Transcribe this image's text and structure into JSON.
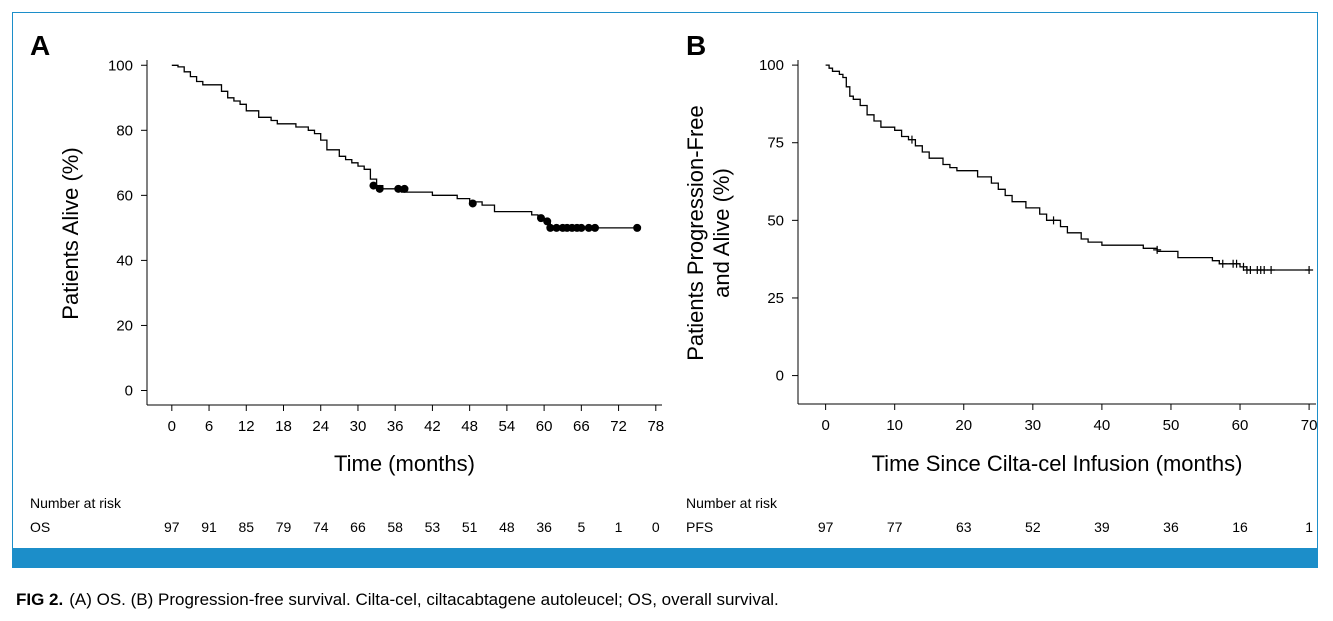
{
  "figure_caption": {
    "label": "FIG 2.",
    "text": "(A) OS. (B) Progression-free survival. Cilta-cel, ciltacabtagene autoleucel; OS, overall survival."
  },
  "chart_data": [
    {
      "panel": "A",
      "type": "line",
      "step": true,
      "xlabel": "Time (months)",
      "ylabel": "Patients Alive (%)",
      "xlim": [
        -4,
        79
      ],
      "ylim": [
        -2,
        101
      ],
      "x_ticks": [
        0,
        6,
        12,
        18,
        24,
        30,
        36,
        42,
        48,
        54,
        60,
        66,
        72,
        78
      ],
      "y_ticks": [
        0,
        20,
        40,
        60,
        80,
        100
      ],
      "censor_marker": "dot",
      "series": [
        {
          "name": "OS",
          "points": [
            [
              0,
              100
            ],
            [
              1,
              100
            ],
            [
              1,
              99.5
            ],
            [
              2,
              99.5
            ],
            [
              2,
              98
            ],
            [
              3,
              98
            ],
            [
              3,
              96.5
            ],
            [
              4,
              96.5
            ],
            [
              4,
              95
            ],
            [
              5,
              95
            ],
            [
              5,
              94
            ],
            [
              8,
              94
            ],
            [
              8,
              92
            ],
            [
              9,
              92
            ],
            [
              9,
              90
            ],
            [
              10,
              90
            ],
            [
              10,
              89
            ],
            [
              11,
              89
            ],
            [
              11,
              88
            ],
            [
              12,
              88
            ],
            [
              12,
              86
            ],
            [
              14,
              86
            ],
            [
              14,
              84
            ],
            [
              16,
              84
            ],
            [
              16,
              83
            ],
            [
              17,
              83
            ],
            [
              17,
              82
            ],
            [
              20,
              82
            ],
            [
              20,
              81
            ],
            [
              22,
              81
            ],
            [
              22,
              80
            ],
            [
              23,
              80
            ],
            [
              23,
              79
            ],
            [
              24,
              79
            ],
            [
              24,
              77
            ],
            [
              25,
              77
            ],
            [
              25,
              74
            ],
            [
              27,
              74
            ],
            [
              27,
              72
            ],
            [
              28,
              72
            ],
            [
              28,
              71
            ],
            [
              29,
              71
            ],
            [
              29,
              70
            ],
            [
              30,
              70
            ],
            [
              30,
              69
            ],
            [
              31,
              69
            ],
            [
              31,
              68
            ],
            [
              32,
              68
            ],
            [
              32,
              65
            ],
            [
              33,
              65
            ],
            [
              33,
              63
            ],
            [
              34,
              63
            ],
            [
              34,
              62
            ],
            [
              37,
              62
            ],
            [
              37,
              61
            ],
            [
              42,
              61
            ],
            [
              42,
              60
            ],
            [
              46,
              60
            ],
            [
              46,
              59
            ],
            [
              48,
              59
            ],
            [
              48,
              58
            ],
            [
              50,
              58
            ],
            [
              50,
              57
            ],
            [
              52,
              57
            ],
            [
              52,
              55
            ],
            [
              58,
              55
            ],
            [
              58,
              54
            ],
            [
              59,
              54
            ],
            [
              59,
              53
            ],
            [
              60,
              53
            ],
            [
              60,
              52
            ],
            [
              61,
              52
            ],
            [
              61,
              50
            ],
            [
              75,
              50
            ]
          ]
        }
      ],
      "censored": [
        [
          32.5,
          63
        ],
        [
          33.5,
          62
        ],
        [
          36.5,
          62
        ],
        [
          37.5,
          62
        ],
        [
          48.5,
          57.5
        ],
        [
          59.5,
          53
        ],
        [
          60.5,
          52
        ],
        [
          61,
          50
        ],
        [
          62,
          50
        ],
        [
          63,
          50
        ],
        [
          63.7,
          50
        ],
        [
          64.5,
          50
        ],
        [
          65.3,
          50
        ],
        [
          66,
          50
        ],
        [
          67.2,
          50
        ],
        [
          68.2,
          50
        ],
        [
          75,
          50
        ]
      ],
      "risk_table": {
        "heading": "Number at risk",
        "row_label": "OS",
        "times": [
          0,
          6,
          12,
          18,
          24,
          30,
          36,
          42,
          48,
          54,
          60,
          66,
          72,
          78
        ],
        "values": [
          97,
          91,
          85,
          79,
          74,
          66,
          58,
          53,
          51,
          48,
          36,
          5,
          1,
          0
        ]
      }
    },
    {
      "panel": "B",
      "type": "line",
      "step": true,
      "xlabel": "Time Since Cilta-cel Infusion (months)",
      "ylabel_lines": [
        "Patients Progression-Free",
        "and Alive (%)"
      ],
      "xlim": [
        -4,
        71
      ],
      "ylim": [
        -4,
        101
      ],
      "x_ticks": [
        0,
        10,
        20,
        30,
        40,
        50,
        60,
        70
      ],
      "y_ticks": [
        0,
        25,
        50,
        75,
        100
      ],
      "censor_marker": "plus",
      "series": [
        {
          "name": "PFS",
          "points": [
            [
              0,
              100
            ],
            [
              0.5,
              100
            ],
            [
              0.5,
              99
            ],
            [
              1,
              99
            ],
            [
              1,
              98
            ],
            [
              2,
              98
            ],
            [
              2,
              97
            ],
            [
              2.5,
              97
            ],
            [
              2.5,
              96
            ],
            [
              3,
              96
            ],
            [
              3,
              93
            ],
            [
              3.5,
              93
            ],
            [
              3.5,
              90
            ],
            [
              4,
              90
            ],
            [
              4,
              89
            ],
            [
              5,
              89
            ],
            [
              5,
              87
            ],
            [
              6,
              87
            ],
            [
              6,
              84
            ],
            [
              7,
              84
            ],
            [
              7,
              82
            ],
            [
              8,
              82
            ],
            [
              8,
              80
            ],
            [
              10,
              80
            ],
            [
              10,
              79
            ],
            [
              11,
              79
            ],
            [
              11,
              77
            ],
            [
              12,
              77
            ],
            [
              12,
              76
            ],
            [
              13,
              76
            ],
            [
              13,
              74
            ],
            [
              14,
              74
            ],
            [
              14,
              72
            ],
            [
              15,
              72
            ],
            [
              15,
              70
            ],
            [
              17,
              70
            ],
            [
              17,
              68
            ],
            [
              18,
              68
            ],
            [
              18,
              67
            ],
            [
              19,
              67
            ],
            [
              19,
              66
            ],
            [
              22,
              66
            ],
            [
              22,
              64
            ],
            [
              24,
              64
            ],
            [
              24,
              62
            ],
            [
              25,
              62
            ],
            [
              25,
              60
            ],
            [
              26,
              60
            ],
            [
              26,
              58
            ],
            [
              27,
              58
            ],
            [
              27,
              56
            ],
            [
              29,
              56
            ],
            [
              29,
              54
            ],
            [
              31,
              54
            ],
            [
              31,
              52
            ],
            [
              32,
              52
            ],
            [
              32,
              50
            ],
            [
              34,
              50
            ],
            [
              34,
              48
            ],
            [
              35,
              48
            ],
            [
              35,
              46
            ],
            [
              37,
              46
            ],
            [
              37,
              44
            ],
            [
              38,
              44
            ],
            [
              38,
              43
            ],
            [
              40,
              43
            ],
            [
              40,
              42
            ],
            [
              46,
              42
            ],
            [
              46,
              41
            ],
            [
              48,
              41
            ],
            [
              48,
              40
            ],
            [
              51,
              40
            ],
            [
              51,
              38
            ],
            [
              56,
              38
            ],
            [
              56,
              37
            ],
            [
              57,
              37
            ],
            [
              57,
              36
            ],
            [
              60,
              36
            ],
            [
              60,
              35
            ],
            [
              61,
              35
            ],
            [
              61,
              34
            ],
            [
              70,
              34
            ]
          ]
        }
      ],
      "censored": [
        [
          12.5,
          76
        ],
        [
          33,
          50
        ],
        [
          48,
          40.5
        ],
        [
          57.5,
          36
        ],
        [
          59,
          36
        ],
        [
          59.5,
          36
        ],
        [
          60.5,
          35
        ],
        [
          61,
          34
        ],
        [
          61.5,
          34
        ],
        [
          62.5,
          34
        ],
        [
          63,
          34
        ],
        [
          63.5,
          34
        ],
        [
          64.5,
          34
        ],
        [
          70,
          34
        ]
      ],
      "risk_table": {
        "heading": "Number at risk",
        "row_label": "PFS",
        "times": [
          0,
          10,
          20,
          30,
          40,
          50,
          60,
          70
        ],
        "values": [
          97,
          77,
          63,
          52,
          39,
          36,
          16,
          1
        ]
      }
    }
  ]
}
